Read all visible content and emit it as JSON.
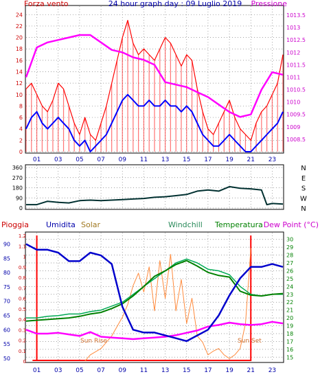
{
  "header": {
    "left": "Forza vento",
    "title": "24 hour graph day : 09 Luglio 2019",
    "right": "Pressione"
  },
  "colors": {
    "border": "#000000",
    "grid": "#808080",
    "wind_gust": "#ff0000",
    "wind_avg": "#0000ff",
    "pressure": "#ff00ff",
    "direction": "#003030",
    "humidity": "#0000cc",
    "solar": "#ff8a3c",
    "windchill": "#00aa55",
    "temperature": "#008000",
    "dewpoint": "#ff00ff",
    "rain": "#ff0000",
    "title_blue": "#0000aa",
    "label_red": "#cc0000"
  },
  "chart_data": [
    {
      "type": "line",
      "name": "wind_pressure",
      "x_ticks": [
        "01",
        "03",
        "05",
        "07",
        "09",
        "11",
        "13",
        "15",
        "17",
        "19",
        "21",
        "23"
      ],
      "y_left_ticks": [
        0,
        2,
        4,
        6,
        8,
        10,
        12,
        14,
        16,
        18,
        20,
        22,
        24
      ],
      "y_left_range": [
        0,
        25
      ],
      "y_right_ticks": [
        1008.5,
        1009,
        1009.5,
        1010,
        1010.5,
        1011,
        1011.5,
        1012,
        1012.5,
        1013,
        1013.5
      ],
      "y_right_range": [
        1008,
        1013.75
      ],
      "series": [
        {
          "name": "Forza vento",
          "key": "gust",
          "x": [
            0,
            0.5,
            1,
            1.5,
            2,
            2.5,
            3,
            3.5,
            4,
            4.5,
            5,
            5.5,
            6,
            6.5,
            7,
            7.5,
            8,
            8.5,
            9,
            9.5,
            10,
            10.5,
            11,
            11.5,
            12,
            12.5,
            13,
            13.5,
            14,
            14.5,
            15,
            15.5,
            16,
            16.5,
            17,
            17.5,
            18,
            18.5,
            19,
            19.5,
            20,
            20.5,
            21,
            21.5,
            22,
            22.5,
            23,
            23.5,
            24
          ],
          "y": [
            11,
            12,
            10,
            8,
            7,
            9,
            12,
            11,
            8,
            5,
            3,
            6,
            3,
            2,
            5,
            8,
            12,
            16,
            20,
            23,
            19,
            17,
            18,
            17,
            16,
            18,
            20,
            19,
            17,
            15,
            17,
            16,
            11,
            7,
            4,
            3,
            5,
            7,
            9,
            6,
            4,
            3,
            2,
            5,
            7,
            8,
            10,
            12,
            17
          ]
        },
        {
          "name": "",
          "key": "avg",
          "x": [
            0,
            0.5,
            1,
            1.5,
            2,
            2.5,
            3,
            3.5,
            4,
            4.5,
            5,
            5.5,
            6,
            6.5,
            7,
            7.5,
            8,
            8.5,
            9,
            9.5,
            10,
            10.5,
            11,
            11.5,
            12,
            12.5,
            13,
            13.5,
            14,
            14.5,
            15,
            15.5,
            16,
            16.5,
            17,
            17.5,
            18,
            18.5,
            19,
            19.5,
            20,
            20.5,
            21,
            21.5,
            22,
            22.5,
            23,
            23.5,
            24
          ],
          "y": [
            4,
            6,
            7,
            5,
            4,
            5,
            6,
            5,
            4,
            2,
            1,
            2,
            0,
            1,
            2,
            3,
            5,
            7,
            9,
            10,
            9,
            8,
            8,
            9,
            8,
            8,
            9,
            8,
            8,
            7,
            8,
            7,
            5,
            3,
            2,
            1,
            1,
            2,
            3,
            2,
            1,
            0,
            0,
            1,
            2,
            3,
            4,
            5,
            7
          ]
        },
        {
          "name": "Pressione",
          "key": "pressure",
          "x": [
            0,
            1,
            2,
            3,
            4,
            5,
            6,
            7,
            8,
            9,
            10,
            11,
            12,
            13,
            14,
            15,
            16,
            17,
            18,
            19,
            20,
            21,
            22,
            23,
            24
          ],
          "y": [
            1011,
            1012.2,
            1012.4,
            1012.5,
            1012.6,
            1012.7,
            1012.7,
            1012.4,
            1012.1,
            1012,
            1011.8,
            1011.7,
            1011.5,
            1010.8,
            1010.7,
            1010.6,
            1010.4,
            1010.2,
            1009.9,
            1009.6,
            1009.4,
            1009.5,
            1010.5,
            1011.2,
            1011.1
          ],
          "axis": "right"
        }
      ]
    },
    {
      "type": "line",
      "name": "wind_direction",
      "x_ticks": [
        "01",
        "03",
        "05",
        "07",
        "09",
        "11",
        "13",
        "15",
        "17",
        "19",
        "21",
        "23"
      ],
      "y_ticks": [
        0,
        90,
        180,
        270,
        360
      ],
      "y_range": [
        0,
        360
      ],
      "compass": [
        "N",
        "W",
        "S",
        "E",
        "N"
      ],
      "series": [
        {
          "name": "",
          "key": "dir",
          "x": [
            0,
            1,
            2,
            3,
            4,
            5,
            6,
            7,
            8,
            9,
            10,
            11,
            12,
            13,
            14,
            15,
            16,
            17,
            18,
            19,
            20,
            21,
            22,
            22.5,
            23,
            24
          ],
          "y": [
            30,
            30,
            60,
            50,
            45,
            65,
            70,
            65,
            70,
            75,
            80,
            85,
            95,
            100,
            110,
            120,
            150,
            160,
            150,
            190,
            175,
            170,
            160,
            30,
            40,
            35
          ]
        }
      ]
    },
    {
      "type": "line",
      "name": "weather",
      "x_ticks": [
        "01",
        "03",
        "05",
        "07",
        "09",
        "11",
        "13",
        "15",
        "17",
        "19",
        "21",
        "23"
      ],
      "y_rain_ticks": [
        0,
        0.05,
        0.1,
        0.15,
        0.2,
        0.25,
        0.3,
        0.35,
        0.4,
        0.45,
        0.5,
        0.55,
        0.6,
        0.65,
        0.7,
        0.75,
        0.8,
        0.85,
        0.9,
        0.95,
        1,
        1.05,
        1.1,
        1.15,
        1.2
      ],
      "y_rain_range": [
        0,
        1.2
      ],
      "y_hum_ticks": [
        50,
        55,
        60,
        65,
        70,
        75,
        80,
        85,
        90
      ],
      "y_hum_range": [
        49,
        93
      ],
      "y_temp_ticks": [
        15,
        16,
        17,
        18,
        19,
        20,
        21,
        22,
        23,
        24,
        25,
        26,
        27,
        28,
        29,
        30
      ],
      "y_temp_range": [
        14.5,
        30.5
      ],
      "legend": [
        "Pioggia",
        "Umidita",
        "Solar",
        "Windchill",
        "Temperatura",
        "Dew Point (°C)"
      ],
      "annotations": [
        "Sun Rise",
        "Sun Set"
      ],
      "series": [
        {
          "name": "Pioggia",
          "key": "rain",
          "x": [
            0,
            0.5,
            1,
            21,
            21.01,
            24
          ],
          "y": [
            0,
            0,
            0,
            0,
            1.2,
            1.2
          ]
        },
        {
          "name": "Umidita",
          "key": "hum",
          "x": [
            0,
            1,
            2,
            3,
            4,
            5,
            6,
            7,
            8,
            9,
            10,
            11,
            12,
            13,
            14,
            15,
            16,
            17,
            18,
            19,
            20,
            21,
            22,
            23,
            24
          ],
          "y": [
            90,
            88,
            88,
            87,
            84,
            84,
            87,
            86,
            83,
            68,
            60,
            59,
            59,
            58,
            57,
            56,
            58,
            60,
            65,
            72,
            78,
            82,
            82,
            83,
            82
          ]
        },
        {
          "name": "Solar",
          "key": "solar",
          "x": [
            5.5,
            6,
            7,
            8,
            9,
            9.5,
            10,
            10.5,
            11,
            11.5,
            12,
            12.5,
            13,
            13.5,
            14,
            14.5,
            15,
            15.5,
            16,
            16.5,
            17,
            17.5,
            18,
            18.5,
            19,
            19.5,
            20,
            20.5,
            21
          ],
          "y": [
            0,
            0.05,
            0.1,
            0.2,
            0.35,
            0.45,
            0.6,
            0.7,
            0.55,
            0.75,
            0.4,
            0.8,
            0.5,
            0.85,
            0.4,
            0.65,
            0.3,
            0.5,
            0.2,
            0.15,
            0.05,
            0.08,
            0.1,
            0.05,
            0.02,
            0.05,
            0.1,
            0.3,
            0.9
          ]
        },
        {
          "name": "Windchill",
          "key": "windchill",
          "x": [
            0,
            1,
            2,
            3,
            4,
            5,
            6,
            7,
            8,
            9,
            10,
            11,
            12,
            13,
            14,
            15,
            16,
            17,
            18,
            19,
            20,
            21,
            22,
            23,
            24
          ],
          "y": [
            20,
            20,
            20.2,
            20.3,
            20.5,
            20.5,
            20.8,
            21,
            21.5,
            22,
            23,
            24,
            25,
            26,
            27,
            27.5,
            27,
            26.2,
            26,
            25.5,
            24,
            23,
            22.8,
            23,
            23
          ]
        },
        {
          "name": "Temperatura",
          "key": "temp",
          "x": [
            0,
            1,
            2,
            3,
            4,
            5,
            6,
            7,
            8,
            9,
            10,
            11,
            12,
            13,
            14,
            15,
            16,
            17,
            18,
            19,
            20,
            21,
            22,
            23,
            24
          ],
          "y": [
            19.6,
            19.7,
            19.8,
            19.9,
            20,
            20.2,
            20.5,
            20.7,
            21.2,
            21.8,
            22.8,
            24,
            25.3,
            26,
            26.8,
            27.3,
            26.6,
            25.8,
            25.4,
            25.2,
            23.4,
            22.9,
            22.8,
            23,
            23.1
          ]
        },
        {
          "name": "Dew Point (°C)",
          "key": "dew",
          "x": [
            0,
            1,
            2,
            3,
            4,
            5,
            6,
            7,
            8,
            9,
            10,
            11,
            12,
            13,
            14,
            15,
            16,
            17,
            18,
            19,
            20,
            21,
            22,
            23,
            24
          ],
          "y": [
            18.5,
            18,
            18,
            18.1,
            17.9,
            17.7,
            18.2,
            17.6,
            17.5,
            17.4,
            17.3,
            17.4,
            17.5,
            17.6,
            17.8,
            18.1,
            18.4,
            18.9,
            19.1,
            19.4,
            19.2,
            19.1,
            19.2,
            19.5,
            19.3
          ]
        }
      ]
    }
  ]
}
